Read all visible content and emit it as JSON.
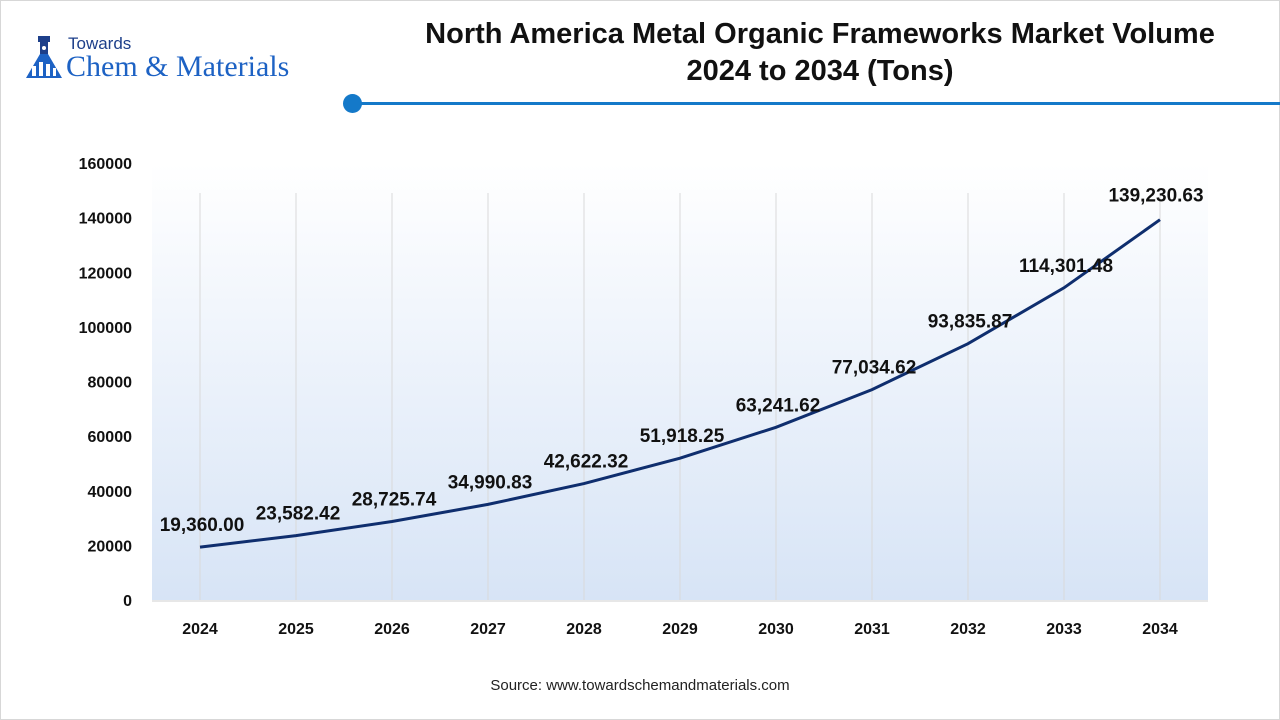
{
  "header": {
    "logo_top": "Towards",
    "logo_brand": "Chem & Materials",
    "title_line1": "North America Metal Organic Frameworks Market Volume",
    "title_line2": "2024 to 2034 (Tons)"
  },
  "source": "Source: www.towardschemandmaterials.com",
  "colors": {
    "line": "#0f2e6e",
    "accent": "#1479c9",
    "area_top": "#ffffff",
    "area_bottom": "#d7e4f6"
  },
  "chart_data": {
    "type": "line",
    "categories": [
      "2024",
      "2025",
      "2026",
      "2027",
      "2028",
      "2029",
      "2030",
      "2031",
      "2032",
      "2033",
      "2034"
    ],
    "values": [
      19360.0,
      23582.42,
      28725.74,
      34990.83,
      42622.32,
      51918.25,
      63241.62,
      77034.62,
      93835.87,
      114301.48,
      139230.63
    ],
    "data_labels": [
      "19,360.00",
      "23,582.42",
      "28,725.74",
      "34,990.83",
      "42,622.32",
      "51,918.25",
      "63,241.62",
      "77,034.62",
      "93,835.87",
      "114,301.48",
      "139,230.63"
    ],
    "yticks": [
      "0",
      "20000",
      "40000",
      "60000",
      "80000",
      "100000",
      "120000",
      "140000",
      "160000"
    ],
    "ylim": [
      0,
      160000
    ],
    "title": "North America Metal Organic Frameworks Market Volume 2024 to 2034 (Tons)",
    "xlabel": "",
    "ylabel": "",
    "grid": "vertical"
  }
}
